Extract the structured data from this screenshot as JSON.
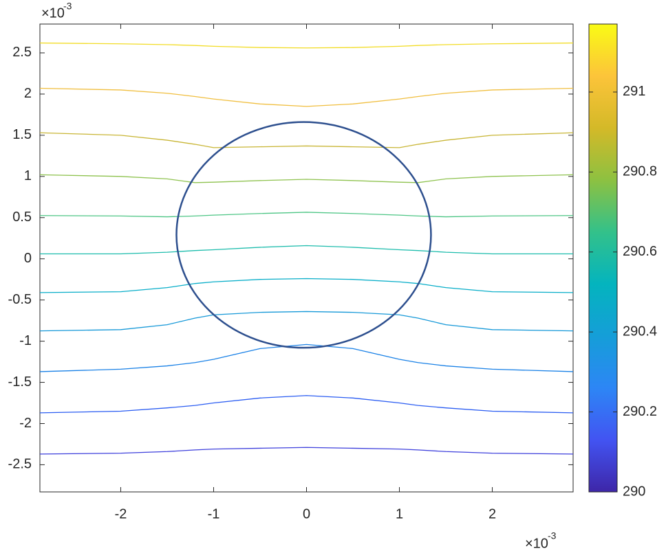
{
  "chart_data": {
    "type": "contour",
    "x": [
      -2.87,
      -2,
      -1.5,
      -1.2,
      -1,
      -0.5,
      0,
      0.5,
      1,
      1.2,
      1.5,
      2,
      2.87
    ],
    "series": [
      {
        "color": "#3d3fdc",
        "values": [
          -2.37,
          -2.36,
          -2.34,
          -2.32,
          -2.31,
          -2.3,
          -2.29,
          -2.3,
          -2.31,
          -2.32,
          -2.34,
          -2.36,
          -2.37
        ]
      },
      {
        "color": "#2a5cf2",
        "values": [
          -1.87,
          -1.85,
          -1.81,
          -1.78,
          -1.75,
          -1.69,
          -1.66,
          -1.69,
          -1.75,
          -1.78,
          -1.81,
          -1.85,
          -1.87
        ]
      },
      {
        "color": "#1880e6",
        "values": [
          -1.37,
          -1.34,
          -1.3,
          -1.26,
          -1.22,
          -1.09,
          -1.04,
          -1.09,
          -1.22,
          -1.26,
          -1.3,
          -1.34,
          -1.37
        ]
      },
      {
        "color": "#1598d8",
        "values": [
          -0.875,
          -0.86,
          -0.8,
          -0.72,
          -0.68,
          -0.65,
          -0.64,
          -0.65,
          -0.68,
          -0.72,
          -0.8,
          -0.86,
          -0.875
        ]
      },
      {
        "color": "#06adc8",
        "values": [
          -0.41,
          -0.4,
          -0.35,
          -0.3,
          -0.28,
          -0.25,
          -0.24,
          -0.25,
          -0.28,
          -0.3,
          -0.35,
          -0.4,
          -0.41
        ]
      },
      {
        "color": "#1cbcac",
        "values": [
          0.06,
          0.06,
          0.08,
          0.1,
          0.11,
          0.14,
          0.16,
          0.14,
          0.11,
          0.1,
          0.08,
          0.06,
          0.06
        ]
      },
      {
        "color": "#4cc584",
        "values": [
          0.525,
          0.52,
          0.51,
          0.52,
          0.53,
          0.55,
          0.565,
          0.55,
          0.53,
          0.52,
          0.51,
          0.52,
          0.525
        ]
      },
      {
        "color": "#8ec24e",
        "values": [
          1.02,
          1.0,
          0.97,
          0.925,
          0.93,
          0.95,
          0.965,
          0.95,
          0.93,
          0.925,
          0.97,
          1.0,
          1.02
        ]
      },
      {
        "color": "#c8b534",
        "values": [
          1.53,
          1.5,
          1.44,
          1.39,
          1.35,
          1.36,
          1.37,
          1.36,
          1.35,
          1.39,
          1.44,
          1.5,
          1.53
        ]
      },
      {
        "color": "#f0be3e",
        "values": [
          2.07,
          2.05,
          2.01,
          1.97,
          1.94,
          1.88,
          1.85,
          1.88,
          1.94,
          1.97,
          2.01,
          2.05,
          2.07
        ]
      },
      {
        "color": "#f2dc24",
        "values": [
          2.62,
          2.61,
          2.6,
          2.59,
          2.58,
          2.565,
          2.56,
          2.565,
          2.58,
          2.59,
          2.6,
          2.61,
          2.62
        ]
      }
    ],
    "circle": {
      "center": [
        -0.03,
        0.29
      ],
      "radius": 1.37,
      "color": "#2d4f8e"
    },
    "xlim": [
      -2.87,
      2.87
    ],
    "ylim": [
      -2.83,
      2.85
    ],
    "xticks": [
      -2,
      -1,
      0,
      1,
      2
    ],
    "yticks": [
      -2.5,
      -2,
      -1.5,
      -1,
      -0.5,
      0,
      0.5,
      1,
      1.5,
      2,
      2.5
    ],
    "x_multiplier": "×10",
    "x_power": "-3",
    "y_multiplier": "×10",
    "y_power": "-3",
    "colorbar": {
      "lim": [
        290,
        291.17
      ],
      "ticks": [
        290,
        290.2,
        290.4,
        290.6,
        290.8,
        291
      ],
      "colormap": [
        "#3e26a8",
        "#4254f2",
        "#2d86f5",
        "#159ed8",
        "#04b4be",
        "#33c18a",
        "#8dc141",
        "#d4b928",
        "#fcc43a",
        "#f9fb15"
      ]
    }
  }
}
